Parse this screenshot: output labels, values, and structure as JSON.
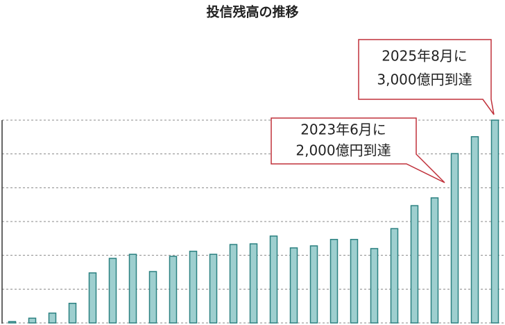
{
  "chart_data": {
    "type": "bar",
    "title": "投信残高の推移",
    "categories": [
      null,
      null,
      null,
      null,
      null,
      null,
      null,
      null,
      null,
      null,
      null,
      null,
      null,
      null,
      null,
      null,
      null,
      null,
      null,
      null,
      null,
      null,
      null,
      null,
      null
    ],
    "values": [
      20,
      70,
      145,
      290,
      740,
      955,
      1015,
      760,
      985,
      1060,
      1015,
      1160,
      1170,
      1285,
      1110,
      1140,
      1235,
      1235,
      1100,
      1395,
      1735,
      1850,
      2505,
      2755,
      3000
    ],
    "color": "#9ecfcf",
    "edge_color": "#2a8080",
    "ylim": [
      0,
      3000
    ],
    "yticks": [
      0,
      500,
      1000,
      1500,
      2000,
      2500,
      3000
    ],
    "grid": true,
    "annotations": [
      {
        "lines": [
          "2025年8月に",
          "3,000億円到達"
        ]
      },
      {
        "lines": [
          "2023年6月に",
          "2,000億円到達"
        ]
      }
    ]
  }
}
